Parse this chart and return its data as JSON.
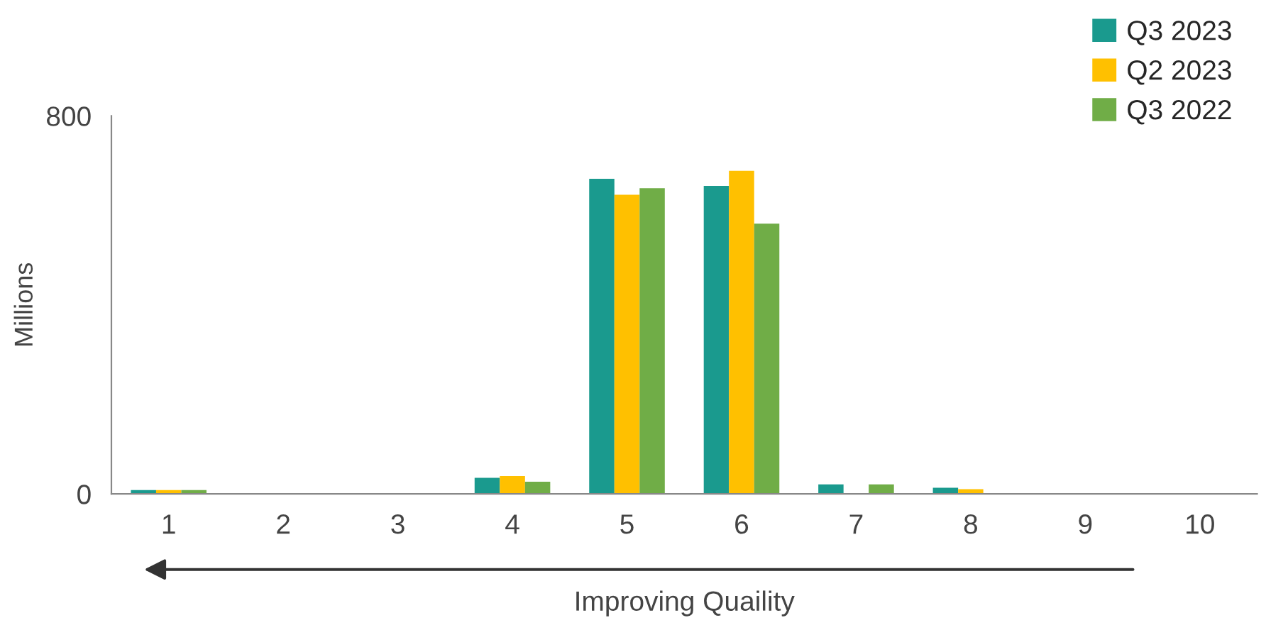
{
  "chart_data": {
    "type": "bar",
    "ylabel": "Millions",
    "xlabel": "Improving Quaility",
    "categories": [
      "1",
      "2",
      "3",
      "4",
      "5",
      "6",
      "7",
      "8",
      "9",
      "10"
    ],
    "series": [
      {
        "name": "Q3 2023",
        "color": "#1a9a8e",
        "values": [
          8,
          null,
          null,
          34,
          667,
          652,
          20,
          13,
          null,
          null
        ]
      },
      {
        "name": "Q2 2023",
        "color": "#ffc000",
        "values": [
          8,
          null,
          null,
          38,
          633,
          684,
          null,
          10,
          null,
          null
        ]
      },
      {
        "name": "Q3 2022",
        "color": "#70ad47",
        "values": [
          8,
          null,
          null,
          26,
          647,
          572,
          20,
          null,
          null,
          null
        ]
      }
    ],
    "ylim": [
      0,
      800
    ],
    "yticks": [
      0,
      800
    ],
    "grid": false,
    "legend": "top right"
  }
}
